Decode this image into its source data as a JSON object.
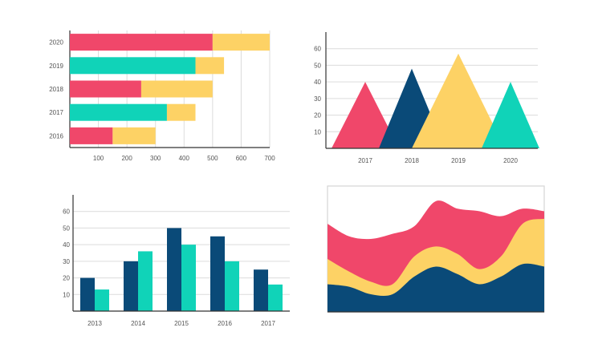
{
  "colors": {
    "pink": "#f0476a",
    "yellow": "#fdd265",
    "teal": "#10d3b8",
    "navy": "#0a4a78"
  },
  "chart_data": [
    {
      "type": "bar",
      "orientation": "horizontal",
      "stacked": true,
      "categories": [
        "2020",
        "2019",
        "2018",
        "2017",
        "2016"
      ],
      "series": [
        {
          "values": [
            500,
            440,
            250,
            340,
            150
          ],
          "colors": [
            "#f0476a",
            "#10d3b8",
            "#f0476a",
            "#10d3b8",
            "#f0476a"
          ]
        },
        {
          "values": [
            200,
            100,
            250,
            100,
            150
          ],
          "color": "#fdd265"
        }
      ],
      "xticks": [
        "100",
        "200",
        "300",
        "400",
        "500",
        "600",
        "700"
      ],
      "xlim": [
        0,
        700
      ],
      "grid": "vertical"
    },
    {
      "type": "area",
      "shape": "triangles",
      "categories": [
        "2017",
        "2018",
        "2019",
        "2020"
      ],
      "values": [
        40,
        48,
        57,
        40
      ],
      "colors": [
        "#f0476a",
        "#0a4a78",
        "#fdd265",
        "#10d3b8"
      ],
      "yticks": [
        "10",
        "20",
        "30",
        "40",
        "50",
        "60"
      ],
      "ylim": [
        0,
        70
      ],
      "grid": "horizontal"
    },
    {
      "type": "bar",
      "categories": [
        "2013",
        "2014",
        "2015",
        "2016",
        "2017"
      ],
      "series": [
        {
          "values": [
            20,
            30,
            50,
            45,
            25
          ],
          "color": "#0a4a78"
        },
        {
          "values": [
            13,
            36,
            40,
            30,
            16
          ],
          "color": "#10d3b8"
        }
      ],
      "yticks": [
        "10",
        "20",
        "30",
        "40",
        "50",
        "60"
      ],
      "ylim": [
        0,
        70
      ],
      "grid": "horizontal"
    },
    {
      "type": "area",
      "stacked": true,
      "smooth": true,
      "x": [
        0,
        1,
        2,
        3,
        4,
        5,
        6,
        7,
        8,
        9,
        10
      ],
      "series": [
        {
          "color": "#0a4a78",
          "values": [
            11,
            10,
            7,
            7,
            14,
            18,
            15,
            11,
            14,
            19,
            18
          ]
        },
        {
          "color": "#fdd265",
          "values": [
            10,
            6,
            5,
            4,
            8,
            8,
            8,
            6,
            8,
            16,
            19
          ]
        },
        {
          "color": "#f0476a",
          "values": [
            14,
            14,
            17,
            20,
            12,
            18,
            18,
            23,
            16,
            6,
            3
          ]
        }
      ],
      "ylim": [
        0,
        50
      ],
      "grid": false,
      "axes": "frame"
    }
  ]
}
